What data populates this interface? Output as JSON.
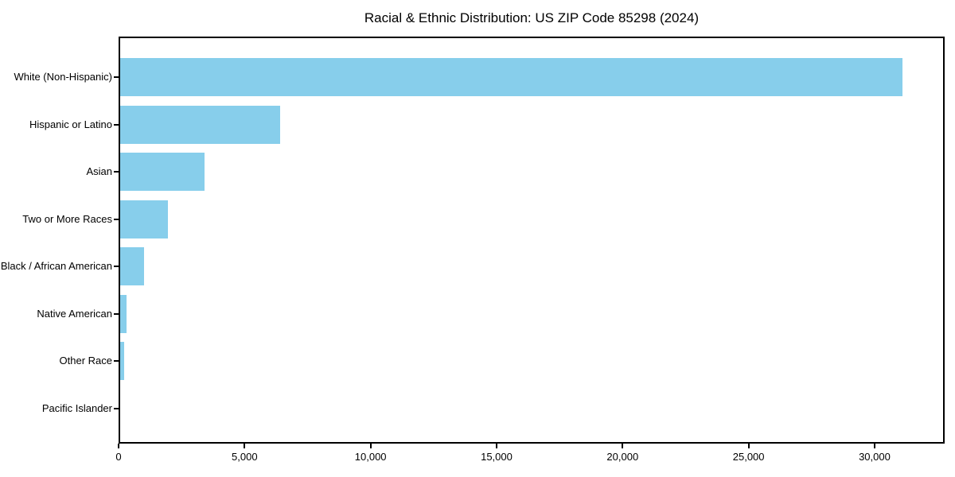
{
  "title": "Racial & Ethnic Distribution: US ZIP Code 85298 (2024)",
  "colors": {
    "bar": "#87CEEB",
    "axis": "#000000",
    "background": "#FFFFFF",
    "text": "#000000"
  },
  "chart_data": {
    "type": "bar",
    "orientation": "horizontal",
    "title": "Racial & Ethnic Distribution: US ZIP Code 85298 (2024)",
    "categories": [
      "White (Non-Hispanic)",
      "Hispanic or Latino",
      "Asian",
      "Two or More Races",
      "Black / African American",
      "Native American",
      "Other Race",
      "Pacific Islander"
    ],
    "values": [
      31150,
      6380,
      3350,
      1900,
      950,
      240,
      160,
      0
    ],
    "xlabel": "",
    "ylabel": "",
    "xlim": [
      0,
      32780
    ],
    "x_ticks": [
      0,
      5000,
      10000,
      15000,
      20000,
      25000,
      30000
    ],
    "x_tick_labels": [
      "0",
      "5,000",
      "10,000",
      "15,000",
      "20,000",
      "25,000",
      "30,000"
    ],
    "bar_color": "#87CEEB",
    "grid": false,
    "legend": false
  }
}
